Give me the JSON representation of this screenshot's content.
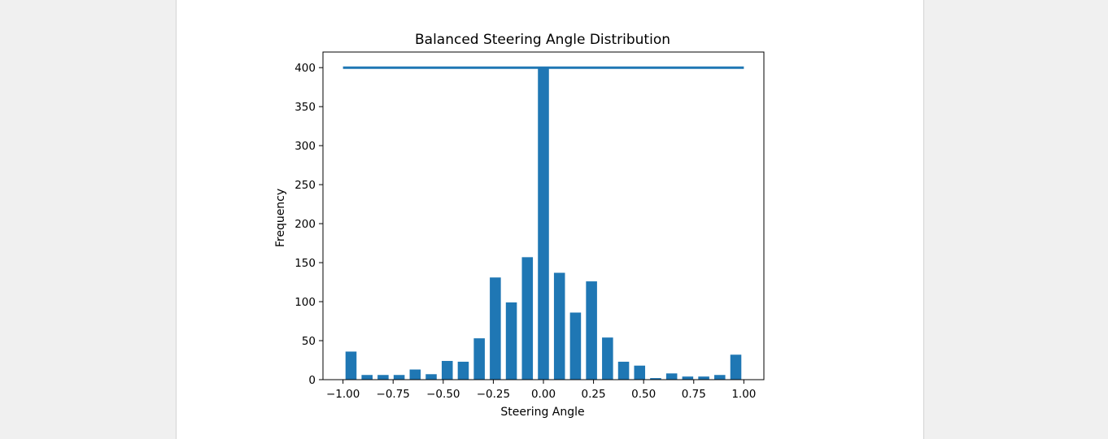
{
  "chart_data": {
    "type": "bar",
    "title": "Balanced Steering Angle Distribution",
    "xlabel": "Steering Angle",
    "ylabel": "Frequency",
    "xlim": [
      -1.1,
      1.1
    ],
    "ylim": [
      0,
      420
    ],
    "xticks": [
      -1.0,
      -0.75,
      -0.5,
      -0.25,
      0.0,
      0.25,
      0.5,
      0.75,
      1.0
    ],
    "xtick_labels": [
      "−1.00",
      "−0.75",
      "−0.50",
      "−0.25",
      "0.00",
      "0.25",
      "0.50",
      "0.75",
      "1.00"
    ],
    "yticks": [
      0,
      50,
      100,
      150,
      200,
      250,
      300,
      350,
      400
    ],
    "ytick_labels": [
      "0",
      "50",
      "100",
      "150",
      "200",
      "250",
      "300",
      "350",
      "400"
    ],
    "grid": false,
    "bar_width": 0.055,
    "x": [
      -0.96,
      -0.88,
      -0.8,
      -0.72,
      -0.64,
      -0.56,
      -0.48,
      -0.4,
      -0.32,
      -0.24,
      -0.16,
      -0.08,
      0.0,
      0.08,
      0.16,
      0.24,
      0.32,
      0.4,
      0.48,
      0.56,
      0.64,
      0.72,
      0.8,
      0.88,
      0.96
    ],
    "values": [
      36,
      6,
      6,
      6,
      13,
      7,
      24,
      23,
      53,
      131,
      99,
      157,
      400,
      137,
      86,
      126,
      54,
      23,
      18,
      2,
      8,
      4,
      4,
      6,
      32
    ],
    "reference_line": {
      "x": [
        -1.0,
        1.0
      ],
      "y": 400
    },
    "colors": {
      "bar": "#1f77b4",
      "line": "#1f77b4"
    }
  }
}
